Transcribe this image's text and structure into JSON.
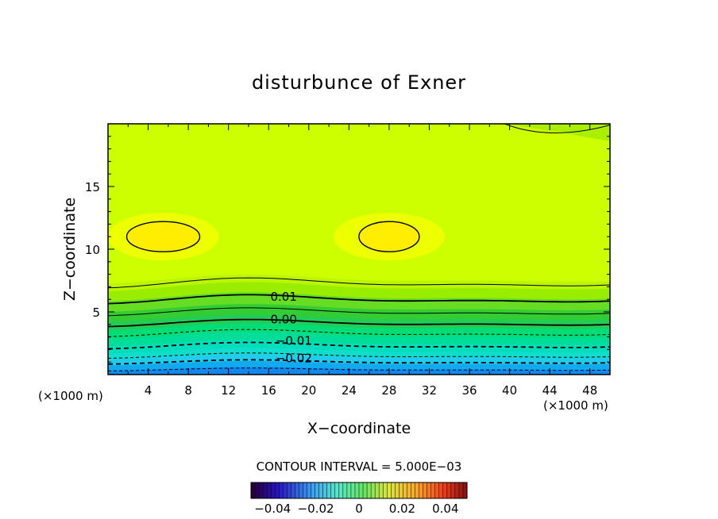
{
  "chart_data": {
    "type": "contour",
    "title": "disturbunce of Exner",
    "xlabel": "X−coordinate",
    "ylabel": "Z−coordinate",
    "x_unit": "(×1000 m)",
    "y_unit": "(×1000 m)",
    "xlim": [
      0,
      50
    ],
    "ylim": [
      0,
      20
    ],
    "x_ticks": [
      4,
      8,
      12,
      16,
      20,
      24,
      28,
      32,
      36,
      40,
      44,
      48
    ],
    "y_ticks": [
      5,
      10,
      15
    ],
    "contour_interval_text": "CONTOUR INTERVAL = 5.000E−03",
    "contour_interval": 0.005,
    "contour_labels": [
      {
        "text": "0.01",
        "x": 17.5,
        "y": 6.2
      },
      {
        "text": "0.00",
        "x": 17.5,
        "y": 4.4
      },
      {
        "text": "−0.01",
        "x": 18.5,
        "y": 2.7
      },
      {
        "text": "−0.02",
        "x": 18.5,
        "y": 1.3
      }
    ],
    "closed_contours": [
      {
        "center_x": 5.5,
        "center_y": 11.0
      },
      {
        "center_x": 28.0,
        "center_y": 11.0
      }
    ],
    "colorbar": {
      "range": [
        -0.05,
        0.05
      ],
      "tick_labels": [
        "−0.04",
        "−0.02",
        "0",
        "0.02",
        "0.04"
      ],
      "tick_values": [
        -0.04,
        -0.02,
        0,
        0.02,
        0.04
      ]
    },
    "colors": {
      "upper_field": "#ccff00",
      "maxima": "#ffee00",
      "gradient": [
        "#33cc33",
        "#00dd88",
        "#00ddbb",
        "#22ccee",
        "#1199ee"
      ],
      "contour_line": "#000000"
    }
  }
}
